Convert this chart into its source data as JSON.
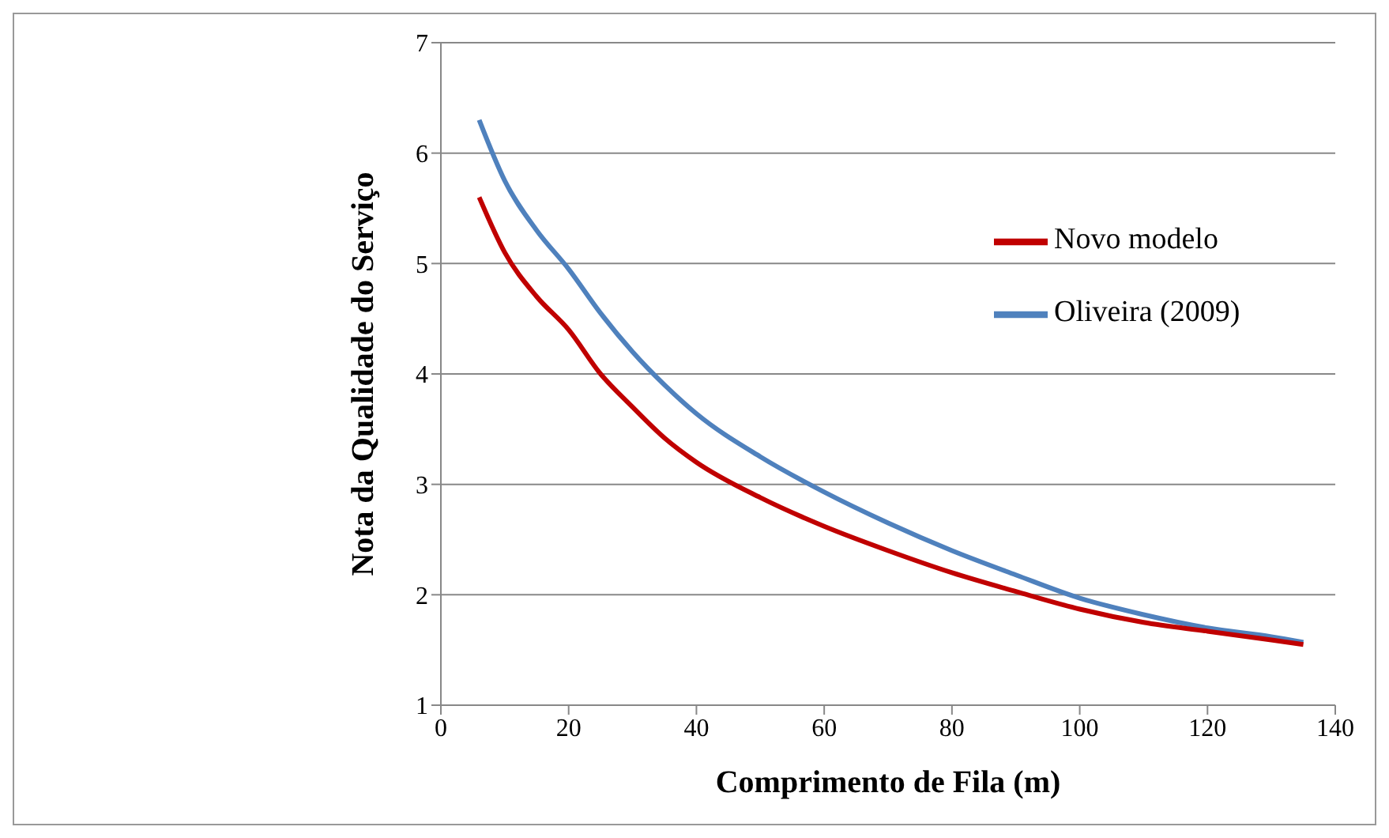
{
  "chart_data": {
    "type": "line",
    "xlabel": "Comprimento de Fila (m)",
    "ylabel": "Nota da Qualidade do Serviço",
    "xlim": [
      0,
      140
    ],
    "xticks": [
      0,
      20,
      40,
      60,
      80,
      100,
      120,
      140
    ],
    "ylim": [
      1,
      7
    ],
    "yticks": [
      1,
      2,
      3,
      4,
      5,
      6,
      7
    ],
    "grid": "y",
    "legend": "right",
    "marker": "none",
    "line_style": "solid",
    "series": [
      {
        "name": "Oliveira (2009)",
        "color": "#4f81bd",
        "x": [
          6,
          10,
          15,
          20,
          25,
          30,
          35,
          40,
          50,
          60,
          70,
          80,
          90,
          100,
          110,
          120,
          130,
          135
        ],
        "values": [
          6.3,
          5.75,
          5.3,
          4.95,
          4.55,
          4.2,
          3.9,
          3.64,
          3.25,
          2.93,
          2.65,
          2.4,
          2.18,
          1.97,
          1.82,
          1.7,
          1.62,
          1.57
        ]
      },
      {
        "name": "Novo modelo",
        "color": "#c00000",
        "x": [
          6,
          10,
          15,
          20,
          25,
          30,
          35,
          40,
          50,
          60,
          70,
          80,
          90,
          100,
          110,
          120,
          130,
          135
        ],
        "values": [
          5.6,
          5.1,
          4.7,
          4.4,
          4.0,
          3.7,
          3.42,
          3.2,
          2.88,
          2.62,
          2.4,
          2.2,
          2.03,
          1.87,
          1.75,
          1.67,
          1.59,
          1.55
        ]
      }
    ]
  }
}
